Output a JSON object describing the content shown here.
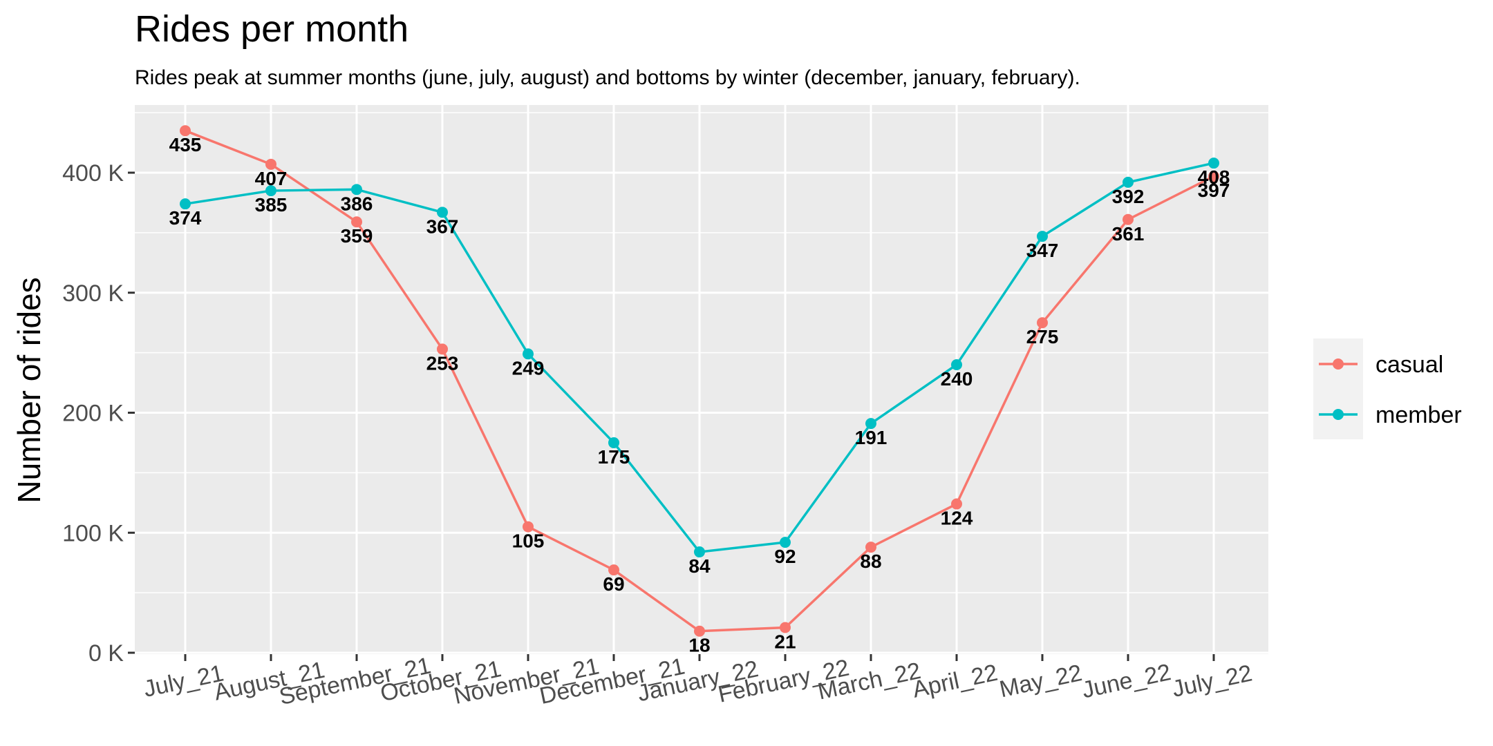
{
  "chart_data": {
    "type": "line",
    "title": "Rides per month",
    "subtitle": "Rides peak at summer months (june, july, august) and bottoms by winter (december, january, february).",
    "xlabel": "",
    "ylabel": "Number of rides",
    "categories": [
      "July_21",
      "August_21",
      "September_21",
      "October_21",
      "November_21",
      "December_21",
      "January_22",
      "February_22",
      "March_22",
      "April_22",
      "May_22",
      "June_22",
      "July_22"
    ],
    "ylim": [
      0,
      450
    ],
    "yticks": [
      0,
      100,
      200,
      300,
      400
    ],
    "ytick_labels": [
      "0 K",
      "100 K",
      "200 K",
      "300 K",
      "400 K"
    ],
    "grid": true,
    "legend_position": "right",
    "series": [
      {
        "name": "casual",
        "color": "#F8766D",
        "values": [
          435,
          407,
          359,
          253,
          105,
          69,
          18,
          21,
          88,
          124,
          275,
          361,
          397
        ],
        "labels": [
          "435",
          "407",
          "359",
          "253",
          "105",
          "69",
          "18",
          "21",
          "88",
          "124",
          "275",
          "361",
          "397"
        ]
      },
      {
        "name": "member",
        "color": "#00BFC4",
        "values": [
          374,
          385,
          386,
          367,
          249,
          175,
          84,
          92,
          191,
          240,
          347,
          392,
          408
        ],
        "labels": [
          "374",
          "385",
          "386",
          "367",
          "249",
          "175",
          "84",
          "92",
          "191",
          "240",
          "347",
          "392",
          "408"
        ]
      }
    ]
  }
}
